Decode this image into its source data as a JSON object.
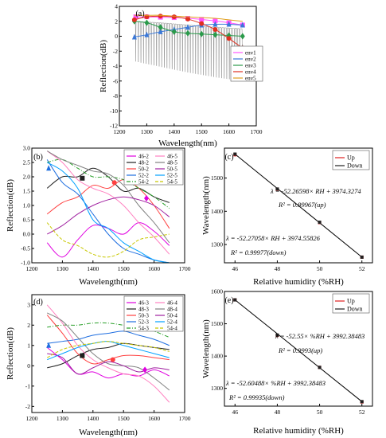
{
  "chart_data": [
    {
      "id": "a",
      "panel_label": "(a)",
      "type": "line",
      "xlabel": "Wavelength(nm)",
      "ylabel": "Reflection(dB)",
      "xlim": [
        1200,
        1700
      ],
      "ylim": [
        -12,
        4
      ],
      "xticks": [
        1200,
        1300,
        1400,
        1500,
        1600,
        1700
      ],
      "yticks": [
        -12,
        -10,
        -8,
        -6,
        -4,
        -2,
        0,
        2,
        4
      ],
      "grid": false,
      "legend_position": "right",
      "spectrum": {
        "color": "#9a9a9a",
        "x_range": [
          1255,
          1650
        ],
        "top_envelope": [
          [
            1255,
            2.0
          ],
          [
            1350,
            1.8
          ],
          [
            1450,
            1.5
          ],
          [
            1550,
            1.2
          ],
          [
            1650,
            1.0
          ]
        ],
        "dip_spacing": 9.5,
        "dip_bottom": [
          [
            1255,
            -6.0
          ],
          [
            1350,
            -7.0
          ],
          [
            1450,
            -8.0
          ],
          [
            1550,
            -8.8
          ],
          [
            1650,
            -9.5
          ]
        ]
      },
      "series": [
        {
          "name": "env1",
          "color": "#ff55ff",
          "marker": "square",
          "x": [
            1260,
            1300,
            1350,
            1400,
            1450,
            1500,
            1550,
            1600,
            1650
          ],
          "y": [
            2.6,
            2.6,
            2.55,
            2.5,
            2.4,
            2.25,
            2.05,
            1.8,
            1.5
          ]
        },
        {
          "name": "env2",
          "color": "#3a78d8",
          "marker": "triangle",
          "x": [
            1255,
            1300,
            1350,
            1400,
            1450,
            1500,
            1550,
            1600,
            1650
          ],
          "y": [
            -0.1,
            0.2,
            0.6,
            0.9,
            1.2,
            1.5,
            1.6,
            1.6,
            1.5
          ]
        },
        {
          "name": "env3",
          "color": "#2a9a4a",
          "marker": "diamond",
          "x": [
            1255,
            1300,
            1350,
            1400,
            1450,
            1500,
            1550,
            1600,
            1650
          ],
          "y": [
            2.0,
            1.8,
            1.2,
            0.6,
            0.4,
            0.3,
            0.2,
            0.1,
            0.0
          ]
        },
        {
          "name": "env4",
          "color": "#e03020",
          "marker": "circle",
          "x": [
            1255,
            1300,
            1350,
            1400,
            1450,
            1500,
            1550,
            1600,
            1650
          ],
          "y": [
            2.2,
            2.6,
            2.7,
            2.6,
            2.3,
            1.7,
            0.9,
            -0.3,
            -1.6
          ]
        },
        {
          "name": "env5",
          "color": "#e0a020",
          "marker": "none",
          "x": [
            1255,
            1300,
            1350,
            1400,
            1450,
            1500,
            1550,
            1600,
            1650
          ],
          "y": [
            2.8,
            2.8,
            2.8,
            2.7,
            2.6,
            2.5,
            2.4,
            2.2,
            2.0
          ]
        }
      ]
    },
    {
      "id": "b",
      "panel_label": "(b)",
      "type": "line",
      "xlabel": "Wavelength(nm)",
      "ylabel": "Reflection(dB)",
      "xlim": [
        1200,
        1700
      ],
      "ylim": [
        -1.0,
        3.0
      ],
      "xticks": [
        1200,
        1300,
        1400,
        1500,
        1600,
        1700
      ],
      "yticks": [
        -1.0,
        -0.5,
        0.0,
        0.5,
        1.0,
        1.5,
        2.0,
        2.5,
        3.0
      ],
      "ytick_labels": [
        "-1.0",
        "-0.5",
        "0.0",
        "0.5",
        "1.0",
        "1.5",
        "2.0",
        "2.5",
        "3.0"
      ],
      "grid": false,
      "legend_position": "top-right",
      "legend_columns": 2,
      "series": [
        {
          "name": "46-2",
          "color": "#e000e0",
          "dash": "solid",
          "x": [
            1250,
            1300,
            1350,
            1400,
            1450,
            1500,
            1550,
            1600,
            1650
          ],
          "y": [
            -0.3,
            -0.8,
            -0.2,
            0.3,
            0.2,
            0.0,
            0.4,
            0.1,
            -0.4
          ]
        },
        {
          "name": "48-2",
          "color": "#202020",
          "dash": "solid",
          "x": [
            1250,
            1300,
            1350,
            1400,
            1450,
            1500,
            1550,
            1600,
            1650
          ],
          "y": [
            1.6,
            2.0,
            2.0,
            2.3,
            2.0,
            1.5,
            1.6,
            1.3,
            1.1
          ]
        },
        {
          "name": "50-2",
          "color": "#ff4040",
          "dash": "solid",
          "x": [
            1250,
            1300,
            1350,
            1400,
            1450,
            1500,
            1550,
            1600,
            1650
          ],
          "y": [
            0.7,
            1.1,
            1.3,
            1.7,
            1.6,
            1.9,
            1.6,
            1.0,
            0.2
          ]
        },
        {
          "name": "52-2",
          "color": "#1e6ee0",
          "dash": "solid",
          "x": [
            1250,
            1300,
            1350,
            1400,
            1450,
            1500,
            1550,
            1600,
            1650
          ],
          "y": [
            2.6,
            1.8,
            1.4,
            0.7,
            0.0,
            -0.5,
            -0.7,
            -0.9,
            -1.0
          ]
        },
        {
          "name": "54-2",
          "color": "#2aa02a",
          "dash": "dashdot",
          "x": [
            1250,
            1300,
            1350,
            1400,
            1450,
            1500,
            1550,
            1600,
            1650
          ],
          "y": [
            2.5,
            2.6,
            2.3,
            2.0,
            2.0,
            1.9,
            1.6,
            1.3,
            0.9
          ]
        },
        {
          "name": "46-5",
          "color": "#ff80c0",
          "dash": "solid",
          "x": [
            1250,
            1300,
            1350,
            1400,
            1450,
            1500,
            1550,
            1600,
            1650
          ],
          "y": [
            2.9,
            2.5,
            1.9,
            1.6,
            1.4,
            1.0,
            0.4,
            -0.1,
            -0.7
          ]
        },
        {
          "name": "48-5",
          "color": "#808080",
          "dash": "solid",
          "x": [
            1250,
            1300,
            1350,
            1400,
            1450,
            1500,
            1550,
            1600,
            1650
          ],
          "y": [
            2.9,
            2.6,
            2.4,
            2.2,
            2.1,
            1.7,
            1.0,
            0.4,
            -0.3
          ]
        },
        {
          "name": "50-5",
          "color": "#a020a0",
          "dash": "solid",
          "x": [
            1250,
            1300,
            1350,
            1400,
            1450,
            1500,
            1550,
            1600,
            1650
          ],
          "y": [
            0.0,
            0.3,
            0.7,
            1.0,
            1.2,
            1.3,
            1.2,
            1.0,
            0.6
          ]
        },
        {
          "name": "52-5",
          "color": "#00a0ff",
          "dash": "solid",
          "x": [
            1250,
            1300,
            1350,
            1400,
            1450,
            1500,
            1550,
            1600,
            1650
          ],
          "y": [
            2.5,
            2.2,
            1.6,
            0.5,
            0.2,
            -0.3,
            -0.6,
            -0.9,
            -1.0
          ]
        },
        {
          "name": "54-5",
          "color": "#c8c800",
          "dash": "dash",
          "x": [
            1250,
            1300,
            1350,
            1400,
            1450,
            1500,
            1550,
            1600,
            1650
          ],
          "y": [
            0.4,
            -0.2,
            -0.4,
            -0.7,
            -0.8,
            -0.6,
            -0.2,
            -0.1,
            0.0
          ]
        }
      ],
      "markers": [
        {
          "x": 1255,
          "y": 2.3,
          "shape": "triangle",
          "color": "#1e6ee0"
        },
        {
          "x": 1365,
          "y": 1.95,
          "shape": "square",
          "color": "#202020"
        },
        {
          "x": 1470,
          "y": 1.8,
          "shape": "circle",
          "color": "#ff4040"
        },
        {
          "x": 1575,
          "y": 1.25,
          "shape": "diamond",
          "color": "#e000e0"
        }
      ]
    },
    {
      "id": "c",
      "panel_label": "(c)",
      "type": "line",
      "xlabel": "Relative humidity (%RH)",
      "ylabel": "Wavelength(nm)",
      "xlim": [
        45.5,
        52.5
      ],
      "ylim": [
        1245,
        1590
      ],
      "xticks": [
        46,
        48,
        50,
        52
      ],
      "yticks": [
        1300,
        1400,
        1500
      ],
      "grid": false,
      "legend_position": "top-right",
      "series": [
        {
          "name": "Up",
          "color": "#e02020",
          "x": [
            46,
            48,
            50,
            52
          ],
          "y": [
            1570,
            1466,
            1366,
            1262
          ]
        },
        {
          "name": "Down",
          "color": "#202020",
          "x": [
            46,
            48,
            50,
            52
          ],
          "y": [
            1572,
            1467,
            1367,
            1262
          ]
        }
      ],
      "annotations": [
        "λ = -52.26598× RH + 3974.3274",
        "R² = 0.99967(up)",
        "λ = -52.27058× RH + 3974.55826",
        "R² = 0.99977(down)"
      ]
    },
    {
      "id": "d",
      "panel_label": "(d)",
      "type": "line",
      "xlabel": "Wavelength(nm)",
      "ylabel": "Reflection(dB)",
      "xlim": [
        1200,
        1700
      ],
      "ylim": [
        -2.3,
        3.5
      ],
      "xticks": [
        1200,
        1300,
        1400,
        1500,
        1600,
        1700
      ],
      "yticks": [
        -2,
        -1,
        0,
        1,
        2,
        3
      ],
      "grid": false,
      "legend_position": "top-right",
      "legend_columns": 2,
      "series": [
        {
          "name": "46-3",
          "color": "#e000e0",
          "dash": "solid",
          "x": [
            1250,
            1300,
            1350,
            1400,
            1450,
            1500,
            1550,
            1600,
            1650
          ],
          "y": [
            0.9,
            0.3,
            -0.4,
            -0.3,
            -0.6,
            -0.4,
            -0.5,
            -0.2,
            -0.5
          ]
        },
        {
          "name": "48-3",
          "color": "#202020",
          "dash": "solid",
          "x": [
            1250,
            1300,
            1350,
            1400,
            1450,
            1500,
            1550,
            1600,
            1650
          ],
          "y": [
            -0.1,
            0.1,
            0.5,
            0.8,
            0.9,
            1.1,
            1.0,
            0.9,
            0.8
          ]
        },
        {
          "name": "50-3",
          "color": "#ff4040",
          "dash": "solid",
          "x": [
            1250,
            1300,
            1350,
            1400,
            1450,
            1500,
            1550,
            1600,
            1650
          ],
          "y": [
            2.5,
            1.6,
            0.6,
            0.1,
            0.3,
            0.5,
            0.5,
            0.4,
            0.3
          ]
        },
        {
          "name": "52-3",
          "color": "#1e6ee0",
          "dash": "solid",
          "x": [
            1250,
            1300,
            1350,
            1400,
            1450,
            1500,
            1550,
            1600,
            1650
          ],
          "y": [
            1.1,
            1.2,
            1.3,
            1.5,
            1.6,
            1.7,
            1.5,
            1.3,
            1.0
          ]
        },
        {
          "name": "54-3",
          "color": "#2aa02a",
          "dash": "dashdot",
          "x": [
            1250,
            1300,
            1350,
            1400,
            1450,
            1500,
            1550,
            1600,
            1650
          ],
          "y": [
            1.9,
            2.0,
            2.0,
            2.1,
            2.1,
            2.0,
            1.9,
            1.7,
            1.4
          ]
        },
        {
          "name": "46-4",
          "color": "#ff80c0",
          "dash": "solid",
          "x": [
            1250,
            1300,
            1350,
            1400,
            1450,
            1500,
            1550,
            1600,
            1650
          ],
          "y": [
            3.0,
            2.1,
            1.0,
            0.3,
            -0.1,
            -0.4,
            -0.5,
            -1.0,
            -1.8
          ]
        },
        {
          "name": "48-4",
          "color": "#808080",
          "dash": "solid",
          "x": [
            1250,
            1300,
            1350,
            1400,
            1450,
            1500,
            1550,
            1600,
            1650
          ],
          "y": [
            2.6,
            2.2,
            1.4,
            0.6,
            0.1,
            0.0,
            -0.1,
            -0.6,
            -1.2
          ]
        },
        {
          "name": "50-4",
          "color": "#a020a0",
          "dash": "solid",
          "x": [
            1250,
            1300,
            1350,
            1400,
            1450,
            1500,
            1550,
            1600,
            1650
          ],
          "y": [
            0.6,
            0.4,
            -0.4,
            -0.1,
            0.2,
            0.0,
            -0.3,
            -0.1,
            -0.2
          ]
        },
        {
          "name": "52-4",
          "color": "#00a0ff",
          "dash": "solid",
          "x": [
            1250,
            1300,
            1350,
            1400,
            1450,
            1500,
            1550,
            1600,
            1650
          ],
          "y": [
            0.3,
            0.6,
            0.9,
            1.1,
            1.2,
            1.0,
            0.8,
            0.6,
            0.4
          ]
        },
        {
          "name": "54-4",
          "color": "#c8c800",
          "dash": "dash",
          "x": [
            1250,
            1300,
            1350,
            1400,
            1450,
            1500,
            1550,
            1600,
            1650
          ],
          "y": [
            0.4,
            0.8,
            1.0,
            1.1,
            1.2,
            1.1,
            1.0,
            0.9,
            0.7
          ]
        }
      ],
      "markers": [
        {
          "x": 1255,
          "y": 1.0,
          "shape": "triangle",
          "color": "#1e6ee0"
        },
        {
          "x": 1365,
          "y": 0.5,
          "shape": "square",
          "color": "#202020"
        },
        {
          "x": 1465,
          "y": 0.3,
          "shape": "circle",
          "color": "#ff4040"
        },
        {
          "x": 1570,
          "y": -0.2,
          "shape": "diamond",
          "color": "#e000e0"
        }
      ]
    },
    {
      "id": "e",
      "panel_label": "(e)",
      "type": "line",
      "xlabel": "Relative humidity (%RH)",
      "ylabel": "Wavelength(nm)",
      "xlim": [
        45.5,
        52.5
      ],
      "ylim": [
        1245,
        1600
      ],
      "xticks": [
        46,
        48,
        50,
        52
      ],
      "yticks": [
        1300,
        1400,
        1500,
        1600
      ],
      "grid": false,
      "legend_position": "top-right",
      "series": [
        {
          "name": "Up",
          "color": "#e02020",
          "x": [
            46,
            48,
            50,
            52
          ],
          "y": [
            1574,
            1464,
            1365,
            1258
          ]
        },
        {
          "name": "Down",
          "color": "#202020",
          "x": [
            46,
            48,
            50,
            52
          ],
          "y": [
            1574,
            1465,
            1365,
            1259
          ]
        }
      ],
      "annotations": [
        "λ = -52.55× %RH + 3992.38483",
        "R² = 0.9993(up)",
        "λ = -52.60488× %RH + 3992.38483",
        "R² = 0.99935(down)"
      ]
    }
  ]
}
